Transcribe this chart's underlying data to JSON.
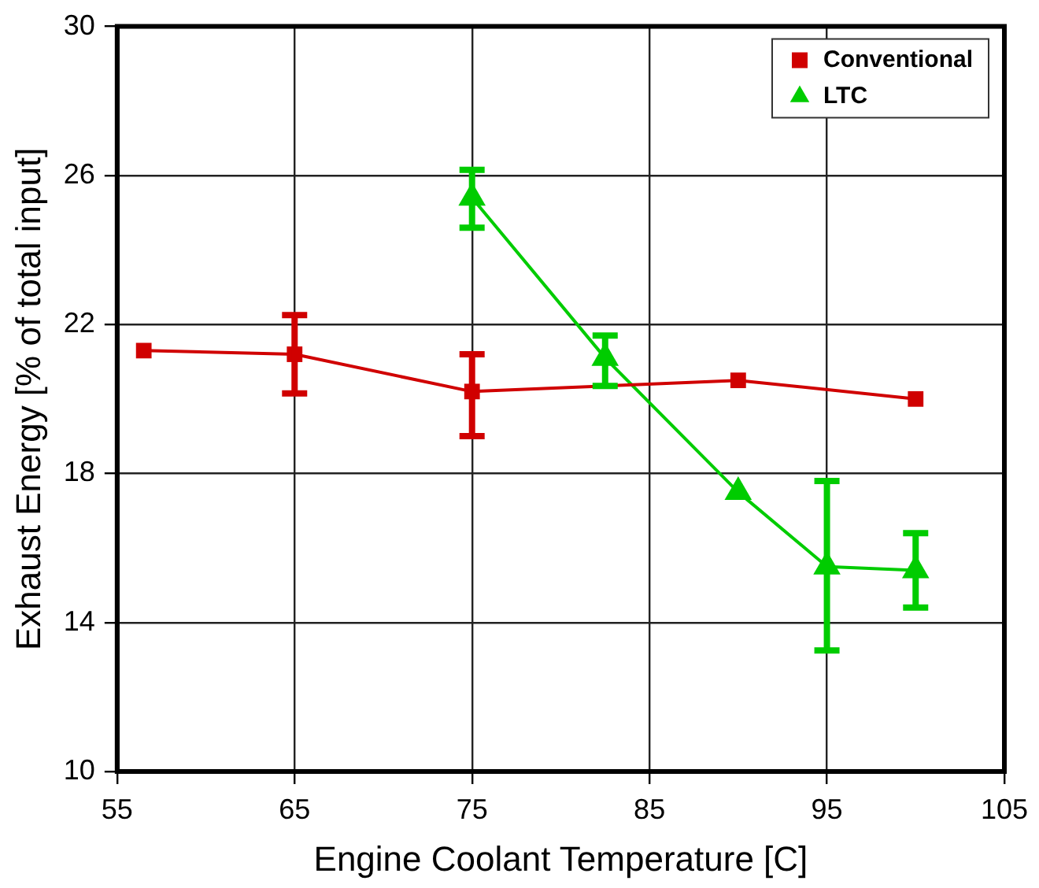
{
  "chart_data": {
    "type": "line",
    "xlabel": "Engine Coolant Temperature [C]",
    "ylabel": "Exhaust Energy [% of total input]",
    "xlim": [
      55,
      105
    ],
    "xticks": [
      55,
      65,
      75,
      85,
      95,
      105
    ],
    "ylim": [
      10,
      30
    ],
    "yticks": [
      10,
      14,
      18,
      22,
      26,
      30
    ],
    "grid": true,
    "legend": "top right",
    "line_style": "solid",
    "series": [
      {
        "name": "Conventional",
        "color": "#d00000",
        "marker": "square",
        "x": [
          56.5,
          65,
          75,
          90,
          100
        ],
        "values": [
          21.3,
          21.2,
          20.2,
          20.5,
          20.0
        ],
        "errors": [
          null,
          [
            20.15,
            22.25
          ],
          [
            19.0,
            21.2
          ],
          null,
          null
        ]
      },
      {
        "name": "LTC",
        "color": "#00cc00",
        "marker": "triangle",
        "x": [
          75,
          82.5,
          90,
          95,
          100
        ],
        "values": [
          25.4,
          21.1,
          17.5,
          15.5,
          15.4
        ],
        "errors": [
          [
            24.6,
            26.15
          ],
          [
            20.35,
            21.7
          ],
          null,
          [
            13.25,
            17.8
          ],
          [
            14.4,
            16.4
          ]
        ]
      }
    ]
  }
}
